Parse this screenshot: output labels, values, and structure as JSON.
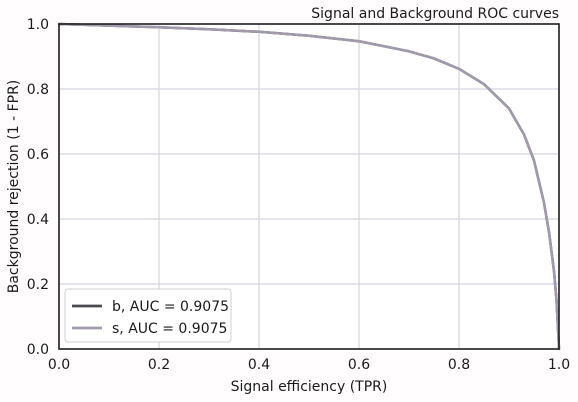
{
  "chart_data": {
    "type": "line",
    "title": "Signal and Background ROC curves",
    "xlabel": "Signal efficiency (TPR)",
    "ylabel": "Background rejection (1 - FPR)",
    "xlim": [
      0.0,
      1.0
    ],
    "ylim": [
      0.0,
      1.0
    ],
    "x_ticks": [
      "0.0",
      "0.2",
      "0.4",
      "0.6",
      "0.8",
      "1.0"
    ],
    "y_ticks": [
      "0.0",
      "0.2",
      "0.4",
      "0.6",
      "0.8",
      "1.0"
    ],
    "grid": true,
    "legend_position": "lower-left",
    "series": [
      {
        "name": "b, AUC = 0.9075",
        "color": "#4a4a50",
        "x": [
          0.0,
          0.1,
          0.2,
          0.3,
          0.4,
          0.5,
          0.6,
          0.7,
          0.75,
          0.8,
          0.85,
          0.9,
          0.93,
          0.95,
          0.97,
          0.98,
          0.99,
          0.995,
          1.0
        ],
        "y": [
          1.0,
          0.995,
          0.99,
          0.984,
          0.976,
          0.964,
          0.947,
          0.916,
          0.894,
          0.862,
          0.815,
          0.74,
          0.66,
          0.58,
          0.45,
          0.36,
          0.24,
          0.15,
          0.0
        ]
      },
      {
        "name": "s, AUC = 0.9075",
        "color": "#a09aaa",
        "x": [
          0.0,
          0.1,
          0.2,
          0.3,
          0.4,
          0.5,
          0.6,
          0.7,
          0.75,
          0.8,
          0.85,
          0.9,
          0.93,
          0.95,
          0.97,
          0.98,
          0.99,
          0.995,
          1.0
        ],
        "y": [
          1.0,
          0.995,
          0.99,
          0.984,
          0.976,
          0.964,
          0.947,
          0.916,
          0.894,
          0.862,
          0.815,
          0.74,
          0.66,
          0.58,
          0.45,
          0.36,
          0.24,
          0.15,
          0.0
        ]
      }
    ]
  }
}
